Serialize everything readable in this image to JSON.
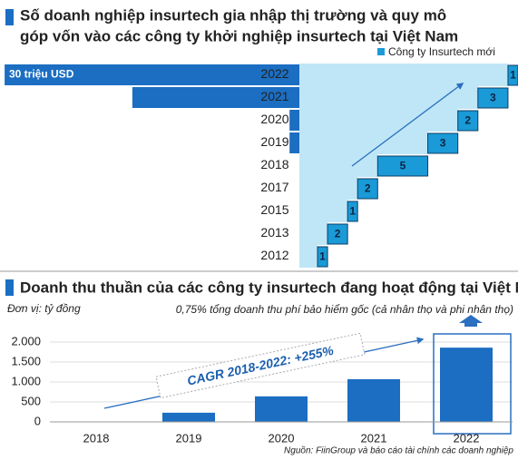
{
  "chart_data": [
    {
      "type": "staircase",
      "title": "Số doanh nghiệp insurtech gia nhập thị trường và quy mô góp vốn vào các công ty khởi nghiệp insurtech tại Việt Nam",
      "title_lines": [
        "Số doanh nghiệp insurtech gia nhập thị trường và quy mô",
        "góp vốn vào các công ty khởi nghiệp insurtech tại Việt Nam"
      ],
      "categories": [
        "2022",
        "2021",
        "2020",
        "2019",
        "2018",
        "2017",
        "2015",
        "2013",
        "2012"
      ],
      "series": [
        {
          "color": "#1b6ec2",
          "values": [
            30,
            17,
            1,
            1,
            0,
            0,
            0,
            0,
            0
          ],
          "value_labels": [
            "30 triệu USD",
            null,
            null,
            null,
            null,
            null,
            null,
            null,
            null
          ]
        },
        {
          "name": "Công ty Insurtech mới",
          "color": "#1a9ad6",
          "values": [
            1,
            3,
            2,
            3,
            5,
            2,
            1,
            2,
            1
          ]
        }
      ],
      "legend": "top-right"
    },
    {
      "type": "bar",
      "title": "Doanh thu thuần của các công ty insurtech đang hoạt động tại Việt Nam",
      "subtitle": "Đơn vị: tỷ đồng",
      "annotations": [
        "0,75% tổng doanh thu phí bảo hiểm gốc (cả nhân thọ và phi nhân thọ)",
        "CAGR 2018-2022: +255%"
      ],
      "source": "Nguồn: FiinGroup và báo cáo tài chính các doanh nghiệp",
      "categories": [
        "2018",
        "2019",
        "2020",
        "2021",
        "2022"
      ],
      "values": [
        10,
        230,
        640,
        1070,
        1860
      ],
      "color": "#1b6ec2",
      "ylim": [
        0,
        2000
      ],
      "yticks": [
        0,
        500,
        {
          "value": 1000,
          "label": "1.000"
        },
        {
          "value": 1500,
          "label": "1.500"
        },
        {
          "value": 2000,
          "label": "2.000"
        }
      ],
      "grid": true
    }
  ]
}
